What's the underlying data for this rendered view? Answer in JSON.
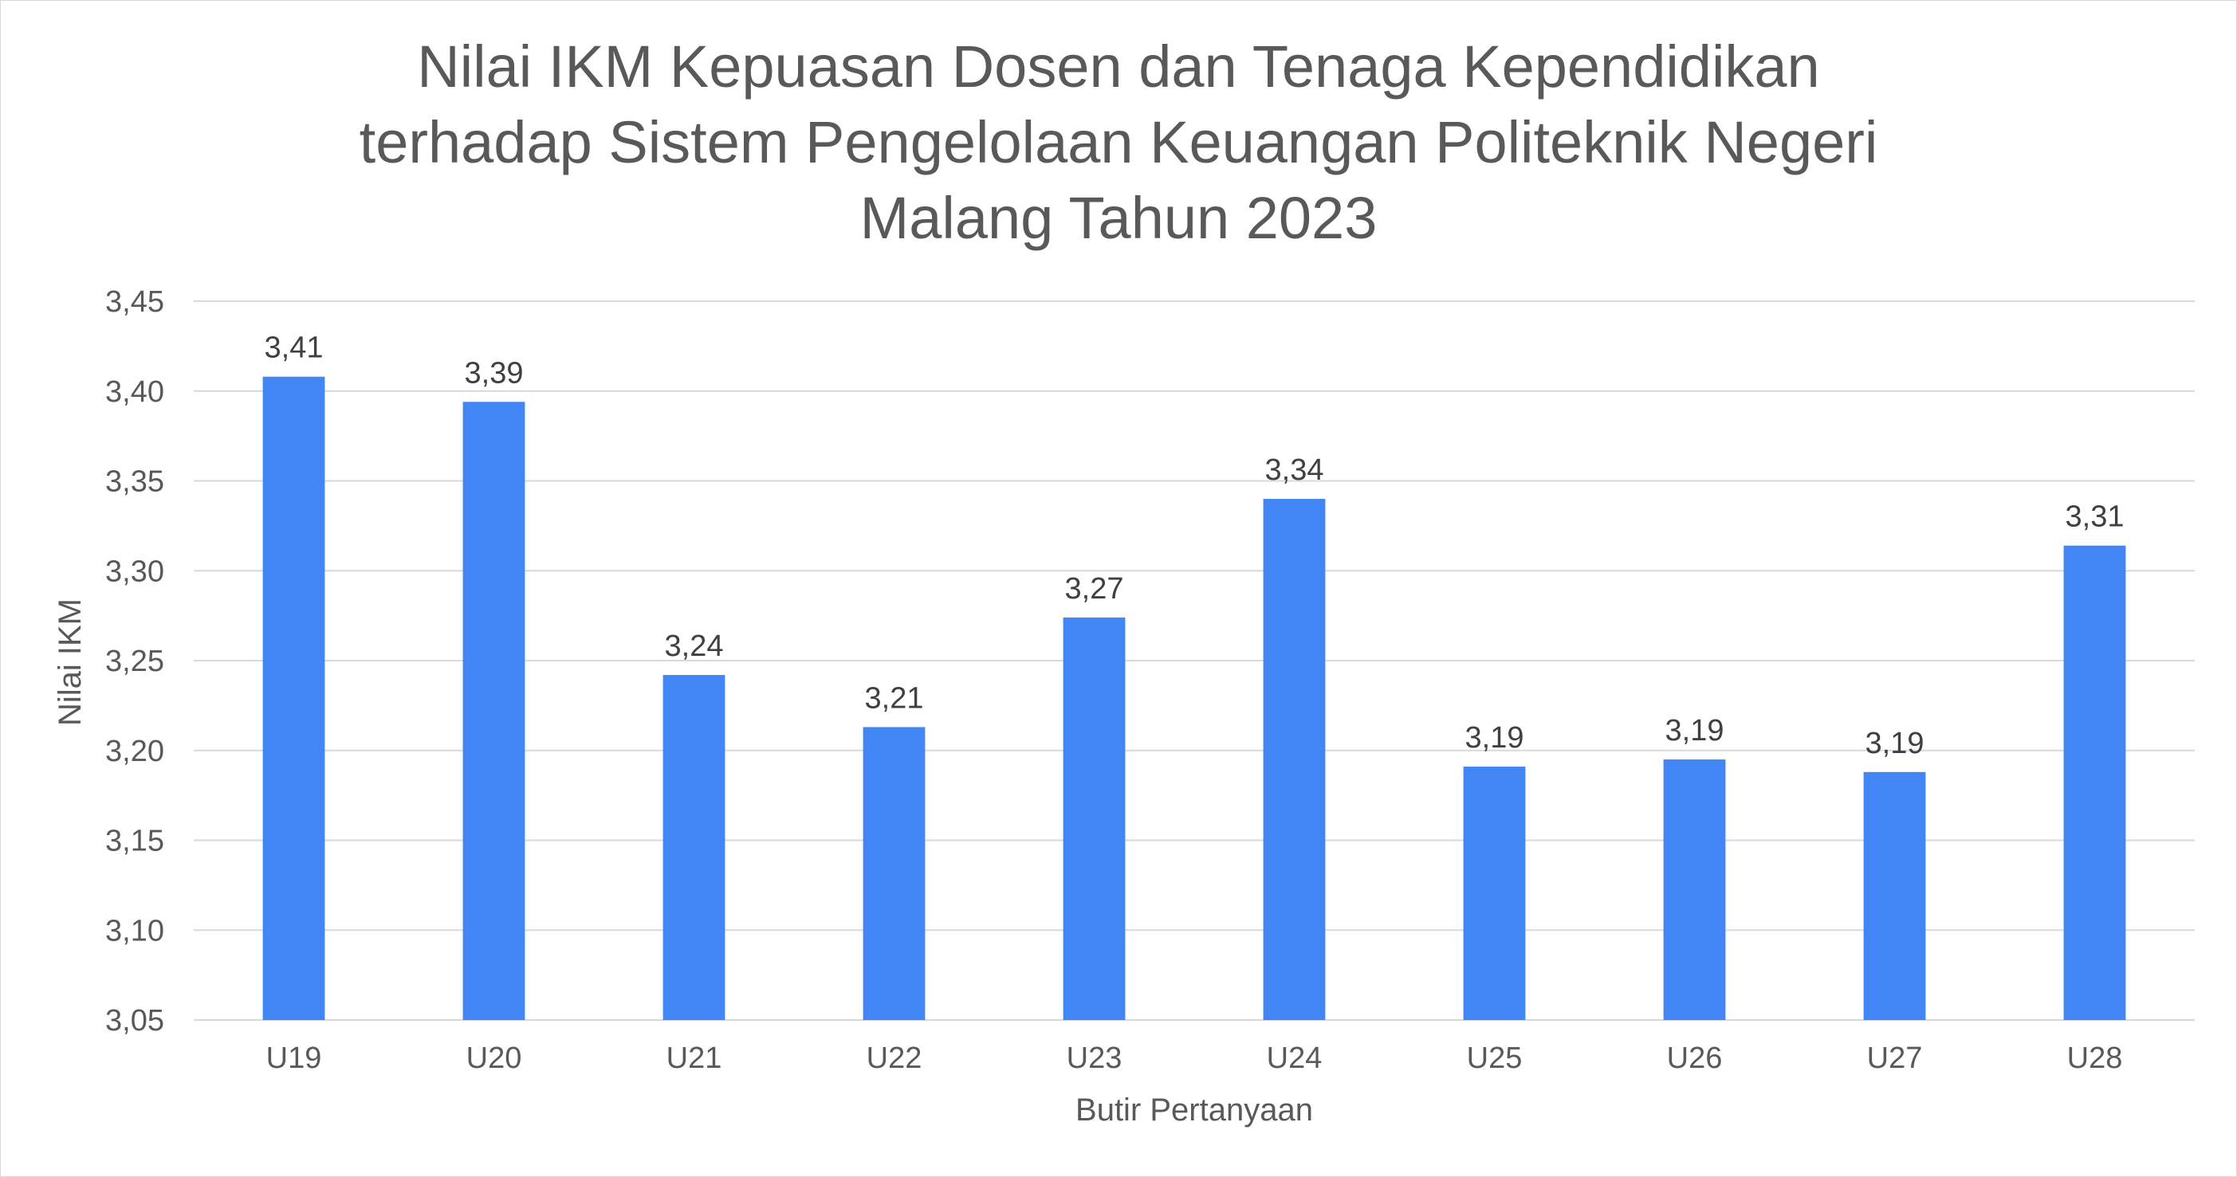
{
  "chart_data": {
    "type": "bar",
    "title_lines": [
      "Nilai IKM Kepuasan Dosen dan Tenaga Kependidikan",
      "terhadap Sistem Pengelolaan Keuangan Politeknik Negeri",
      "Malang Tahun 2023"
    ],
    "xlabel": "Butir Pertanyaan",
    "ylabel": "Nilai IKM",
    "categories": [
      "U19",
      "U20",
      "U21",
      "U22",
      "U23",
      "U24",
      "U25",
      "U26",
      "U27",
      "U28"
    ],
    "values": [
      3.408,
      3.394,
      3.242,
      3.213,
      3.274,
      3.34,
      3.191,
      3.195,
      3.188,
      3.314
    ],
    "data_labels": [
      "3,41",
      "3,39",
      "3,24",
      "3,21",
      "3,27",
      "3,34",
      "3,19",
      "3,19",
      "3,19",
      "3,31"
    ],
    "ylim": [
      3.05,
      3.45
    ],
    "yticks": [
      "3,05",
      "3,10",
      "3,15",
      "3,20",
      "3,25",
      "3,30",
      "3,35",
      "3,40",
      "3,45"
    ],
    "grid": true,
    "legend": "none",
    "bar_color": "#4285f4"
  }
}
